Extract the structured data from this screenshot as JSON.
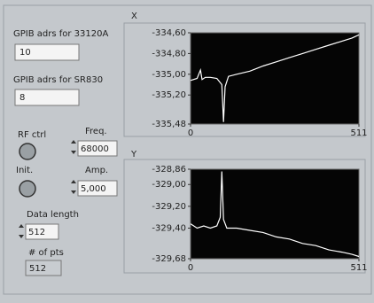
{
  "controls": {
    "gpib_33120a": {
      "label": "GPIB adrs for 33120A",
      "value": 10
    },
    "gpib_sr830": {
      "label": "GPIB adrs for SR830",
      "value": 8
    },
    "rf_ctrl": {
      "label": "RF ctrl"
    },
    "freq": {
      "label": "Freq.",
      "value": 68000
    },
    "init": {
      "label": "Init."
    },
    "amp": {
      "label": "Amp.",
      "value": "5,000"
    },
    "data_length": {
      "label": "Data length",
      "value": 512
    },
    "num_pts": {
      "label": "# of pts",
      "value": 512
    }
  },
  "chart_data": [
    {
      "type": "line",
      "title": "X",
      "x": [
        0,
        20,
        30,
        35,
        45,
        60,
        80,
        95,
        100,
        105,
        115,
        140,
        180,
        220,
        260,
        300,
        340,
        380,
        420,
        460,
        490,
        511
      ],
      "series": [
        {
          "color": "#ffffff",
          "values": [
            -335.06,
            -335.04,
            -334.96,
            -335.05,
            -335.03,
            -335.03,
            -335.04,
            -335.1,
            -335.46,
            -335.12,
            -335.02,
            -335.0,
            -334.97,
            -334.92,
            -334.88,
            -334.84,
            -334.8,
            -334.76,
            -334.72,
            -334.68,
            -334.65,
            -334.62
          ]
        }
      ],
      "xlim": [
        0,
        511
      ],
      "xticks": [
        0,
        511
      ],
      "ylim": [
        -335.48,
        -334.6
      ],
      "yticks": [
        {
          "value": -334.6,
          "label": "-334,60"
        },
        {
          "value": -334.8,
          "label": "-334,80"
        },
        {
          "value": -335.0,
          "label": "-335,00"
        },
        {
          "value": -335.2,
          "label": "-335,20"
        },
        {
          "value": -335.48,
          "label": "-335,48"
        }
      ]
    },
    {
      "type": "line",
      "title": "Y",
      "x": [
        0,
        20,
        40,
        60,
        80,
        90,
        95,
        100,
        110,
        140,
        180,
        220,
        260,
        300,
        340,
        380,
        420,
        460,
        490,
        511
      ],
      "series": [
        {
          "color": "#ffffff",
          "values": [
            -329.36,
            -329.4,
            -329.38,
            -329.4,
            -329.38,
            -329.3,
            -328.88,
            -329.32,
            -329.4,
            -329.4,
            -329.42,
            -329.44,
            -329.48,
            -329.5,
            -329.54,
            -329.56,
            -329.6,
            -329.62,
            -329.64,
            -329.66
          ]
        }
      ],
      "xlim": [
        0,
        511
      ],
      "xticks": [
        0,
        511
      ],
      "ylim": [
        -329.68,
        -328.86
      ],
      "yticks": [
        {
          "value": -328.86,
          "label": "-328,86"
        },
        {
          "value": -329.0,
          "label": "-329,00"
        },
        {
          "value": -329.2,
          "label": "-329,20"
        },
        {
          "value": -329.4,
          "label": "-329,40"
        },
        {
          "value": -329.68,
          "label": "-329,68"
        }
      ]
    }
  ]
}
